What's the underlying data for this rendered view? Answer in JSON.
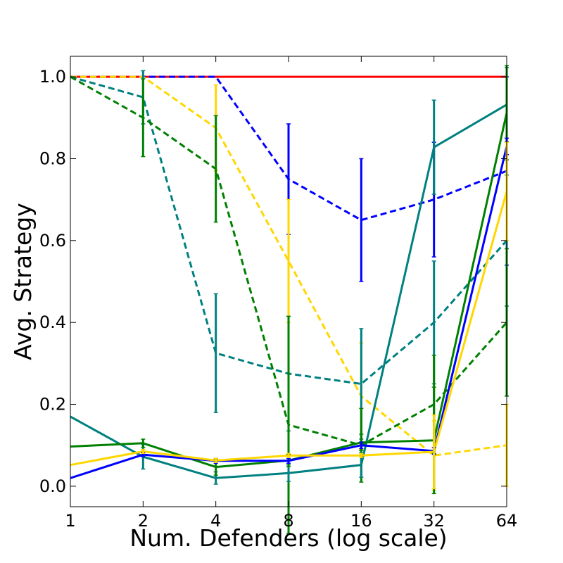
{
  "chart_data": {
    "type": "line",
    "title": "",
    "xlabel": "Num. Defenders (log scale)",
    "ylabel": "Avg. Strategy",
    "x_scale": "log2",
    "x": [
      1,
      2,
      4,
      8,
      16,
      32,
      64
    ],
    "x_tick_labels": [
      "1",
      "2",
      "4",
      "8",
      "16",
      "32",
      "64"
    ],
    "y_ticks": [
      0.0,
      0.2,
      0.4,
      0.6,
      0.8,
      1.0
    ],
    "y_tick_labels": [
      "0.0",
      "0.2",
      "0.4",
      "0.6",
      "0.8",
      "1.0"
    ],
    "xlim": [
      1,
      64
    ],
    "ylim": [
      -0.05,
      1.05
    ],
    "grid": false,
    "legend": "none",
    "series": [
      {
        "name": "red",
        "color": "#ff0000",
        "dashed": false,
        "values": [
          1.0,
          1.0,
          1.0,
          1.0,
          1.0,
          1.0,
          1.0
        ],
        "err": [
          0,
          0,
          0,
          0,
          0,
          0,
          0
        ]
      },
      {
        "name": "blue-dashed",
        "color": "#0000ff",
        "dashed": true,
        "values": [
          1.0,
          1.0,
          1.0,
          0.75,
          0.65,
          0.7,
          0.77
        ],
        "err": [
          0,
          0,
          0,
          0.135,
          0.15,
          0.14,
          0.23
        ]
      },
      {
        "name": "yellow-dashed",
        "color": "#ffd700",
        "dashed": true,
        "values": [
          1.0,
          1.0,
          0.875,
          0.55,
          0.22,
          0.075,
          0.1
        ],
        "err": [
          0,
          0,
          0.105,
          0.15,
          0.13,
          0.085,
          0.1
        ]
      },
      {
        "name": "teal-dashed",
        "color": "#008080",
        "dashed": true,
        "values": [
          1.0,
          0.95,
          0.325,
          0.275,
          0.25,
          0.4,
          0.6
        ],
        "err": [
          0,
          0.065,
          0.145,
          0.14,
          0.135,
          0.15,
          0.16
        ]
      },
      {
        "name": "green-dashed",
        "color": "#008000",
        "dashed": true,
        "values": [
          1.0,
          0.9,
          0.775,
          0.15,
          0.1,
          0.2,
          0.4
        ],
        "err": [
          0,
          0.095,
          0.13,
          0.265,
          0.09,
          0.12,
          0.18
        ]
      },
      {
        "name": "teal",
        "color": "#008080",
        "dashed": false,
        "values": [
          0.17,
          0.072,
          0.02,
          0.032,
          0.052,
          0.828,
          0.932
        ],
        "err": [
          0,
          0.03,
          0.015,
          0.02,
          0.03,
          0.115,
          0.09
        ]
      },
      {
        "name": "green",
        "color": "#008000",
        "dashed": false,
        "values": [
          0.097,
          0.105,
          0.047,
          0.063,
          0.107,
          0.112,
          0.912
        ],
        "err": [
          0,
          0.01,
          0.02,
          0.015,
          0.02,
          0.13,
          0.115
        ]
      },
      {
        "name": "blue",
        "color": "#0000ff",
        "dashed": false,
        "values": [
          0.02,
          0.077,
          0.062,
          0.062,
          0.1,
          0.086,
          0.83
        ],
        "err": [
          0,
          0.005,
          0.006,
          0.006,
          0.008,
          0.008,
          0.02
        ]
      },
      {
        "name": "yellow",
        "color": "#ffd700",
        "dashed": false,
        "values": [
          0.052,
          0.085,
          0.063,
          0.075,
          0.075,
          0.084,
          0.72
        ],
        "err": [
          0,
          0.005,
          0.005,
          0.005,
          0.005,
          0.09,
          0.12
        ]
      }
    ]
  }
}
